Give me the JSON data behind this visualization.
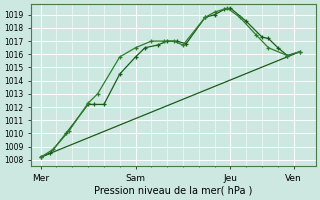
{
  "background_color": "#cce8e0",
  "grid_color": "#ffffff",
  "line_color_dark": "#1a5c1a",
  "line_color_medium": "#2e7d2e",
  "xlabel": "Pression niveau de la mer( hPa )",
  "ylim": [
    1007.5,
    1019.8
  ],
  "yticks": [
    1008,
    1009,
    1010,
    1011,
    1012,
    1013,
    1014,
    1015,
    1016,
    1017,
    1018,
    1019
  ],
  "xtick_labels": [
    "Mer",
    "Sam",
    "Jeu",
    "Ven"
  ],
  "xtick_positions": [
    0,
    30,
    60,
    80
  ],
  "xlim": [
    -3,
    87
  ],
  "series1_x": [
    0,
    3,
    8,
    15,
    17,
    20,
    25,
    30,
    33,
    37,
    40,
    43,
    46,
    52,
    55,
    58,
    60,
    65,
    70,
    72,
    75,
    78,
    82
  ],
  "series1_y": [
    1008.2,
    1008.5,
    1010.0,
    1012.2,
    1012.2,
    1012.2,
    1014.5,
    1015.8,
    1016.5,
    1016.7,
    1017.0,
    1017.0,
    1016.8,
    1018.8,
    1019.0,
    1019.4,
    1019.5,
    1018.5,
    1017.3,
    1017.2,
    1016.5,
    1015.9,
    1016.2
  ],
  "series2_x": [
    0,
    4,
    9,
    15,
    18,
    25,
    30,
    35,
    39,
    42,
    45,
    52,
    55,
    59,
    63,
    68,
    72,
    78,
    82
  ],
  "series2_y": [
    1008.2,
    1008.8,
    1010.2,
    1012.3,
    1013.0,
    1015.8,
    1016.5,
    1017.0,
    1017.0,
    1017.0,
    1016.7,
    1018.8,
    1019.2,
    1019.5,
    1018.8,
    1017.5,
    1016.5,
    1015.9,
    1016.2
  ],
  "series3_x": [
    0,
    82
  ],
  "series3_y": [
    1008.2,
    1016.2
  ],
  "figsize": [
    3.2,
    2.0
  ],
  "dpi": 100,
  "ytick_fontsize": 5.5,
  "xtick_fontsize": 6.5,
  "xlabel_fontsize": 7
}
